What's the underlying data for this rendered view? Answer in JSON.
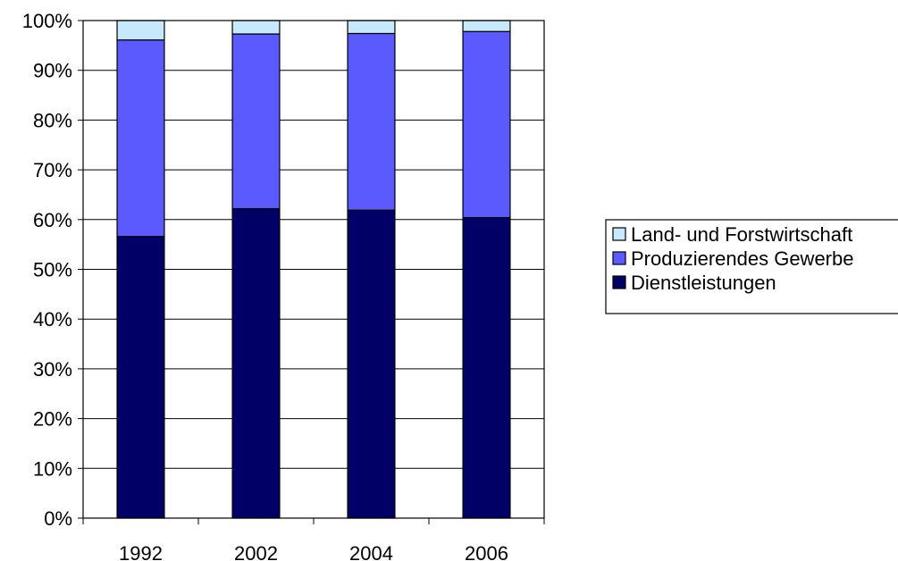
{
  "chart_data": {
    "type": "bar",
    "stacked": true,
    "normalized_percent": true,
    "categories": [
      "1992",
      "2002",
      "2004",
      "2006"
    ],
    "series": [
      {
        "name": "Dienstleistungen",
        "color": "#000066",
        "values": [
          56.6,
          62.2,
          61.9,
          60.4
        ]
      },
      {
        "name": "Produzierendes Gewerbe",
        "color": "#5a5aff",
        "values": [
          39.5,
          35.1,
          35.5,
          37.4
        ]
      },
      {
        "name": "Land- und Forstwirtschaft",
        "color": "#c6e9fb",
        "values": [
          3.9,
          2.7,
          2.6,
          2.2
        ]
      }
    ],
    "ylim": [
      0,
      100
    ],
    "y_ticks": [
      "0%",
      "10%",
      "20%",
      "30%",
      "40%",
      "50%",
      "60%",
      "70%",
      "80%",
      "90%",
      "100%"
    ],
    "grid": true,
    "legend_position": "right",
    "legend_order": [
      "Land- und Forstwirtschaft",
      "Produzierendes Gewerbe",
      "Dienstleistungen"
    ]
  }
}
